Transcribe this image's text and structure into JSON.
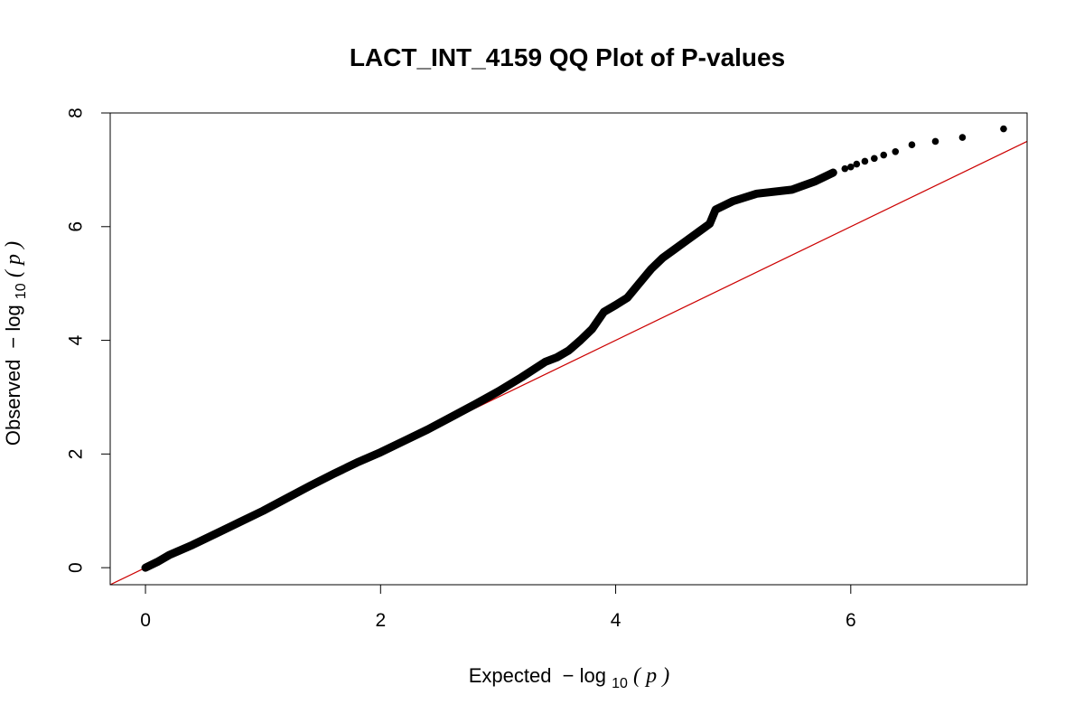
{
  "chart_data": {
    "type": "scatter",
    "title": "LACT_INT_4159 QQ Plot of P-values",
    "xlabel": {
      "prefix": "Expected",
      "minus": "−",
      "log": "log",
      "sub": "10",
      "open": "(",
      "var": "p",
      "close": ")"
    },
    "ylabel": {
      "prefix": "Observed",
      "minus": "−",
      "log": "log",
      "sub": "10",
      "open": "(",
      "var": "p",
      "close": ")"
    },
    "xlim": [
      -0.3,
      7.5
    ],
    "ylim": [
      -0.3,
      8.0
    ],
    "xticks": [
      0,
      2,
      4,
      6
    ],
    "yticks": [
      0,
      2,
      4,
      6,
      8
    ],
    "xtick_labels": [
      "0",
      "2",
      "4",
      "6"
    ],
    "ytick_labels": [
      "0",
      "2",
      "4",
      "6",
      "8"
    ],
    "grid": false,
    "legend": "none",
    "point_color": "#000000",
    "reference_line": {
      "slope": 1,
      "intercept": 0,
      "color": "#cc0000"
    },
    "curve_points": [
      [
        0.0,
        0.0
      ],
      [
        0.1,
        0.1
      ],
      [
        0.2,
        0.22
      ],
      [
        0.4,
        0.4
      ],
      [
        0.6,
        0.6
      ],
      [
        0.8,
        0.8
      ],
      [
        1.0,
        1.0
      ],
      [
        1.2,
        1.22
      ],
      [
        1.4,
        1.44
      ],
      [
        1.6,
        1.65
      ],
      [
        1.8,
        1.85
      ],
      [
        2.0,
        2.03
      ],
      [
        2.2,
        2.23
      ],
      [
        2.4,
        2.43
      ],
      [
        2.6,
        2.65
      ],
      [
        2.8,
        2.87
      ],
      [
        3.0,
        3.1
      ],
      [
        3.2,
        3.35
      ],
      [
        3.4,
        3.62
      ],
      [
        3.5,
        3.7
      ],
      [
        3.6,
        3.82
      ],
      [
        3.7,
        4.0
      ],
      [
        3.8,
        4.2
      ],
      [
        3.9,
        4.5
      ],
      [
        4.0,
        4.62
      ],
      [
        4.1,
        4.75
      ],
      [
        4.2,
        5.0
      ],
      [
        4.3,
        5.25
      ],
      [
        4.4,
        5.45
      ],
      [
        4.5,
        5.6
      ],
      [
        4.6,
        5.75
      ],
      [
        4.7,
        5.9
      ],
      [
        4.8,
        6.05
      ],
      [
        4.85,
        6.3
      ],
      [
        5.0,
        6.45
      ],
      [
        5.2,
        6.58
      ],
      [
        5.5,
        6.65
      ],
      [
        5.7,
        6.8
      ],
      [
        5.85,
        6.95
      ]
    ],
    "tail_points": [
      [
        5.95,
        7.02
      ],
      [
        6.0,
        7.05
      ],
      [
        6.05,
        7.1
      ],
      [
        6.12,
        7.15
      ],
      [
        6.2,
        7.2
      ],
      [
        6.28,
        7.26
      ],
      [
        6.38,
        7.32
      ],
      [
        6.52,
        7.44
      ],
      [
        6.72,
        7.5
      ],
      [
        6.95,
        7.57
      ],
      [
        7.3,
        7.72
      ]
    ]
  }
}
